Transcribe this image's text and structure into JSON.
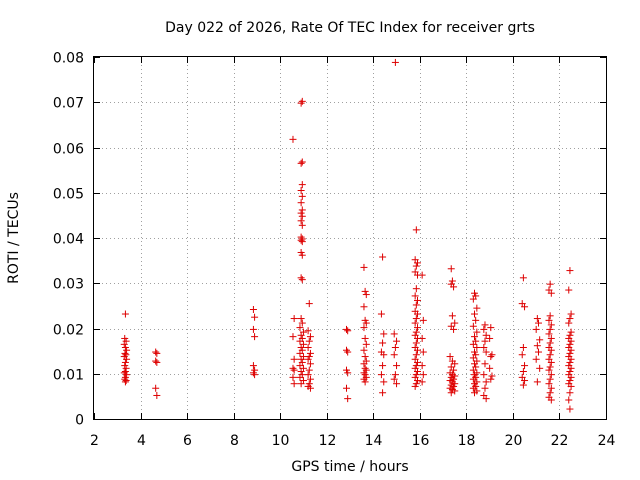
{
  "chart_data": {
    "type": "scatter",
    "title": "Day 022 of 2026, Rate Of TEC Index for receiver grts",
    "xlabel": "GPS time / hours",
    "ylabel": "ROTI / TECUs",
    "xlim": [
      2,
      24
    ],
    "ylim": [
      0,
      0.08
    ],
    "xticks": [
      2,
      4,
      6,
      8,
      10,
      12,
      14,
      16,
      18,
      20,
      22,
      24
    ],
    "xtick_labels": [
      "2",
      "4",
      "6",
      "8",
      "10",
      "12",
      "14",
      "16",
      "18",
      "20",
      "22",
      "24"
    ],
    "yticks": [
      0,
      0.01,
      0.02,
      0.03,
      0.04,
      0.05,
      0.06,
      0.07,
      0.08
    ],
    "ytick_labels": [
      "0",
      "0.01",
      "0.02",
      "0.03",
      "0.04",
      "0.05",
      "0.06",
      "0.07",
      "0.08"
    ],
    "grid": true,
    "marker": "+",
    "color": "#dd0000",
    "points": [
      [
        3.35,
        0.0232
      ],
      [
        3.32,
        0.0178
      ],
      [
        3.38,
        0.0172
      ],
      [
        3.3,
        0.0165
      ],
      [
        3.35,
        0.0158
      ],
      [
        3.4,
        0.0152
      ],
      [
        3.33,
        0.0145
      ],
      [
        3.37,
        0.0142
      ],
      [
        3.3,
        0.0138
      ],
      [
        3.4,
        0.0132
      ],
      [
        3.35,
        0.0125
      ],
      [
        3.32,
        0.0118
      ],
      [
        3.38,
        0.0112
      ],
      [
        3.35,
        0.0105
      ],
      [
        3.3,
        0.0102
      ],
      [
        3.4,
        0.0098
      ],
      [
        3.35,
        0.0092
      ],
      [
        3.32,
        0.0088
      ],
      [
        3.38,
        0.0085
      ],
      [
        3.35,
        0.0082
      ],
      [
        4.65,
        0.0148
      ],
      [
        4.7,
        0.0145
      ],
      [
        4.65,
        0.0128
      ],
      [
        4.7,
        0.0125
      ],
      [
        4.65,
        0.0068
      ],
      [
        4.7,
        0.0052
      ],
      [
        8.85,
        0.0242
      ],
      [
        8.9,
        0.0225
      ],
      [
        8.85,
        0.0198
      ],
      [
        8.9,
        0.0182
      ],
      [
        8.85,
        0.0118
      ],
      [
        8.9,
        0.0108
      ],
      [
        8.85,
        0.0102
      ],
      [
        8.9,
        0.0098
      ],
      [
        10.55,
        0.0618
      ],
      [
        10.6,
        0.0222
      ],
      [
        10.55,
        0.0182
      ],
      [
        10.6,
        0.0132
      ],
      [
        10.55,
        0.0112
      ],
      [
        10.6,
        0.0108
      ],
      [
        10.55,
        0.0092
      ],
      [
        10.6,
        0.0078
      ],
      [
        10.95,
        0.0702
      ],
      [
        10.9,
        0.0698
      ],
      [
        10.95,
        0.0568
      ],
      [
        10.9,
        0.0565
      ],
      [
        10.95,
        0.0518
      ],
      [
        10.9,
        0.0505
      ],
      [
        10.95,
        0.0492
      ],
      [
        10.9,
        0.0478
      ],
      [
        10.95,
        0.0462
      ],
      [
        10.9,
        0.0455
      ],
      [
        10.95,
        0.0448
      ],
      [
        10.9,
        0.0438
      ],
      [
        10.95,
        0.0428
      ],
      [
        10.9,
        0.0402
      ],
      [
        10.95,
        0.0398
      ],
      [
        10.9,
        0.0395
      ],
      [
        10.95,
        0.0392
      ],
      [
        10.9,
        0.0368
      ],
      [
        10.95,
        0.0362
      ],
      [
        10.9,
        0.0312
      ],
      [
        10.95,
        0.0308
      ],
      [
        10.9,
        0.0222
      ],
      [
        10.95,
        0.0212
      ],
      [
        10.85,
        0.0202
      ],
      [
        11.0,
        0.0192
      ],
      [
        10.9,
        0.0185
      ],
      [
        10.95,
        0.0178
      ],
      [
        10.85,
        0.0172
      ],
      [
        11.0,
        0.0165
      ],
      [
        10.9,
        0.0158
      ],
      [
        10.95,
        0.0152
      ],
      [
        10.85,
        0.0145
      ],
      [
        11.0,
        0.0138
      ],
      [
        10.9,
        0.0132
      ],
      [
        10.95,
        0.0125
      ],
      [
        10.85,
        0.0118
      ],
      [
        11.0,
        0.0112
      ],
      [
        10.9,
        0.0105
      ],
      [
        10.95,
        0.0098
      ],
      [
        10.85,
        0.0092
      ],
      [
        11.0,
        0.0085
      ],
      [
        10.9,
        0.0078
      ],
      [
        11.25,
        0.0255
      ],
      [
        11.2,
        0.0195
      ],
      [
        11.3,
        0.0182
      ],
      [
        11.25,
        0.0172
      ],
      [
        11.2,
        0.0158
      ],
      [
        11.3,
        0.0145
      ],
      [
        11.25,
        0.0138
      ],
      [
        11.2,
        0.0132
      ],
      [
        11.3,
        0.0122
      ],
      [
        11.25,
        0.0108
      ],
      [
        11.2,
        0.0098
      ],
      [
        11.3,
        0.0088
      ],
      [
        11.25,
        0.0078
      ],
      [
        11.2,
        0.0072
      ],
      [
        11.3,
        0.0068
      ],
      [
        12.85,
        0.0198
      ],
      [
        12.9,
        0.0195
      ],
      [
        12.85,
        0.0152
      ],
      [
        12.9,
        0.0148
      ],
      [
        12.85,
        0.0108
      ],
      [
        12.9,
        0.0102
      ],
      [
        12.85,
        0.0068
      ],
      [
        12.9,
        0.0045
      ],
      [
        13.6,
        0.0335
      ],
      [
        13.65,
        0.0282
      ],
      [
        13.7,
        0.0275
      ],
      [
        13.6,
        0.0248
      ],
      [
        13.65,
        0.0218
      ],
      [
        13.7,
        0.0212
      ],
      [
        13.6,
        0.0202
      ],
      [
        13.65,
        0.0178
      ],
      [
        13.7,
        0.0165
      ],
      [
        13.6,
        0.0152
      ],
      [
        13.65,
        0.0138
      ],
      [
        13.7,
        0.0128
      ],
      [
        13.6,
        0.0122
      ],
      [
        13.65,
        0.0112
      ],
      [
        13.7,
        0.0108
      ],
      [
        13.6,
        0.0102
      ],
      [
        13.65,
        0.0098
      ],
      [
        13.7,
        0.0092
      ],
      [
        13.6,
        0.0088
      ],
      [
        13.65,
        0.0082
      ],
      [
        14.4,
        0.0358
      ],
      [
        14.35,
        0.0232
      ],
      [
        14.45,
        0.0188
      ],
      [
        14.4,
        0.0168
      ],
      [
        14.35,
        0.0148
      ],
      [
        14.45,
        0.0142
      ],
      [
        14.4,
        0.0118
      ],
      [
        14.35,
        0.0098
      ],
      [
        14.45,
        0.0082
      ],
      [
        14.4,
        0.0058
      ],
      [
        14.95,
        0.0788
      ],
      [
        14.9,
        0.0188
      ],
      [
        15.0,
        0.0172
      ],
      [
        14.95,
        0.0158
      ],
      [
        14.9,
        0.0142
      ],
      [
        15.0,
        0.0118
      ],
      [
        14.95,
        0.0098
      ],
      [
        14.9,
        0.0088
      ],
      [
        15.0,
        0.0078
      ],
      [
        15.85,
        0.0418
      ],
      [
        15.8,
        0.0352
      ],
      [
        15.9,
        0.0345
      ],
      [
        15.85,
        0.0338
      ],
      [
        15.8,
        0.0325
      ],
      [
        15.9,
        0.0318
      ],
      [
        15.85,
        0.0288
      ],
      [
        15.8,
        0.0272
      ],
      [
        15.9,
        0.0262
      ],
      [
        15.85,
        0.0252
      ],
      [
        15.8,
        0.0238
      ],
      [
        15.9,
        0.0232
      ],
      [
        15.85,
        0.0222
      ],
      [
        15.8,
        0.0212
      ],
      [
        15.9,
        0.0202
      ],
      [
        15.85,
        0.0192
      ],
      [
        15.8,
        0.0185
      ],
      [
        15.9,
        0.0178
      ],
      [
        15.85,
        0.0168
      ],
      [
        15.8,
        0.0158
      ],
      [
        15.9,
        0.0152
      ],
      [
        15.85,
        0.0142
      ],
      [
        15.8,
        0.0132
      ],
      [
        15.9,
        0.0125
      ],
      [
        15.85,
        0.0118
      ],
      [
        15.8,
        0.0112
      ],
      [
        15.9,
        0.0105
      ],
      [
        15.85,
        0.0098
      ],
      [
        15.8,
        0.0092
      ],
      [
        15.9,
        0.0085
      ],
      [
        15.85,
        0.0078
      ],
      [
        15.8,
        0.0072
      ],
      [
        16.1,
        0.0318
      ],
      [
        16.15,
        0.0218
      ],
      [
        16.1,
        0.0178
      ],
      [
        16.15,
        0.0148
      ],
      [
        16.1,
        0.0118
      ],
      [
        16.15,
        0.0098
      ],
      [
        16.1,
        0.0082
      ],
      [
        17.35,
        0.0332
      ],
      [
        17.4,
        0.0305
      ],
      [
        17.35,
        0.0298
      ],
      [
        17.45,
        0.0292
      ],
      [
        17.4,
        0.0228
      ],
      [
        17.5,
        0.0212
      ],
      [
        17.35,
        0.0205
      ],
      [
        17.45,
        0.0198
      ],
      [
        17.3,
        0.0138
      ],
      [
        17.4,
        0.0128
      ],
      [
        17.5,
        0.0122
      ],
      [
        17.35,
        0.0115
      ],
      [
        17.45,
        0.0108
      ],
      [
        17.3,
        0.0102
      ],
      [
        17.4,
        0.0098
      ],
      [
        17.5,
        0.0095
      ],
      [
        17.35,
        0.0092
      ],
      [
        17.45,
        0.0088
      ],
      [
        17.3,
        0.0085
      ],
      [
        17.4,
        0.0082
      ],
      [
        17.5,
        0.0078
      ],
      [
        17.35,
        0.0075
      ],
      [
        17.45,
        0.0072
      ],
      [
        17.3,
        0.0068
      ],
      [
        17.4,
        0.0065
      ],
      [
        17.5,
        0.0062
      ],
      [
        17.35,
        0.0058
      ],
      [
        18.35,
        0.0278
      ],
      [
        18.4,
        0.0272
      ],
      [
        18.3,
        0.0265
      ],
      [
        18.45,
        0.0245
      ],
      [
        18.35,
        0.0232
      ],
      [
        18.4,
        0.0218
      ],
      [
        18.3,
        0.0205
      ],
      [
        18.45,
        0.0192
      ],
      [
        18.35,
        0.0182
      ],
      [
        18.4,
        0.0172
      ],
      [
        18.3,
        0.0165
      ],
      [
        18.45,
        0.0158
      ],
      [
        18.35,
        0.0148
      ],
      [
        18.4,
        0.0142
      ],
      [
        18.3,
        0.0135
      ],
      [
        18.45,
        0.0128
      ],
      [
        18.35,
        0.0122
      ],
      [
        18.4,
        0.0115
      ],
      [
        18.3,
        0.0108
      ],
      [
        18.45,
        0.0102
      ],
      [
        18.35,
        0.0098
      ],
      [
        18.4,
        0.0092
      ],
      [
        18.3,
        0.0088
      ],
      [
        18.45,
        0.0082
      ],
      [
        18.35,
        0.0078
      ],
      [
        18.4,
        0.0072
      ],
      [
        18.3,
        0.0068
      ],
      [
        18.45,
        0.0062
      ],
      [
        18.35,
        0.0058
      ],
      [
        18.8,
        0.0208
      ],
      [
        18.75,
        0.0198
      ],
      [
        18.85,
        0.0185
      ],
      [
        18.8,
        0.0172
      ],
      [
        18.75,
        0.0158
      ],
      [
        18.85,
        0.0148
      ],
      [
        18.8,
        0.0122
      ],
      [
        18.75,
        0.0098
      ],
      [
        18.85,
        0.0082
      ],
      [
        18.8,
        0.0068
      ],
      [
        18.75,
        0.0052
      ],
      [
        18.85,
        0.0045
      ],
      [
        19.05,
        0.0202
      ],
      [
        19.0,
        0.0178
      ],
      [
        19.1,
        0.0142
      ],
      [
        19.05,
        0.0138
      ],
      [
        19.0,
        0.0112
      ],
      [
        19.1,
        0.0095
      ],
      [
        19.05,
        0.0088
      ],
      [
        20.45,
        0.0312
      ],
      [
        20.4,
        0.0255
      ],
      [
        20.5,
        0.0248
      ],
      [
        20.45,
        0.0158
      ],
      [
        20.4,
        0.0142
      ],
      [
        20.5,
        0.0118
      ],
      [
        20.45,
        0.0105
      ],
      [
        20.4,
        0.0092
      ],
      [
        20.5,
        0.0085
      ],
      [
        20.45,
        0.0075
      ],
      [
        21.05,
        0.0222
      ],
      [
        21.1,
        0.0212
      ],
      [
        21.0,
        0.0198
      ],
      [
        21.15,
        0.0175
      ],
      [
        21.05,
        0.0162
      ],
      [
        21.1,
        0.0148
      ],
      [
        21.0,
        0.0132
      ],
      [
        21.15,
        0.0112
      ],
      [
        21.05,
        0.0082
      ],
      [
        21.6,
        0.0298
      ],
      [
        21.55,
        0.0285
      ],
      [
        21.65,
        0.0278
      ],
      [
        21.6,
        0.0228
      ],
      [
        21.55,
        0.0218
      ],
      [
        21.65,
        0.0208
      ],
      [
        21.6,
        0.0198
      ],
      [
        21.55,
        0.0188
      ],
      [
        21.65,
        0.0178
      ],
      [
        21.6,
        0.0168
      ],
      [
        21.55,
        0.0158
      ],
      [
        21.65,
        0.0152
      ],
      [
        21.6,
        0.0142
      ],
      [
        21.55,
        0.0132
      ],
      [
        21.65,
        0.0125
      ],
      [
        21.6,
        0.0115
      ],
      [
        21.55,
        0.0108
      ],
      [
        21.65,
        0.0098
      ],
      [
        21.6,
        0.0088
      ],
      [
        21.55,
        0.0078
      ],
      [
        21.65,
        0.0068
      ],
      [
        21.6,
        0.0058
      ],
      [
        21.55,
        0.0048
      ],
      [
        21.65,
        0.0042
      ],
      [
        22.45,
        0.0328
      ],
      [
        22.4,
        0.0285
      ],
      [
        22.5,
        0.0232
      ],
      [
        22.45,
        0.0222
      ],
      [
        22.4,
        0.0212
      ],
      [
        22.5,
        0.0192
      ],
      [
        22.45,
        0.0185
      ],
      [
        22.4,
        0.0178
      ],
      [
        22.5,
        0.0172
      ],
      [
        22.45,
        0.0165
      ],
      [
        22.4,
        0.0158
      ],
      [
        22.5,
        0.0152
      ],
      [
        22.45,
        0.0145
      ],
      [
        22.4,
        0.0138
      ],
      [
        22.5,
        0.0132
      ],
      [
        22.45,
        0.0125
      ],
      [
        22.4,
        0.0118
      ],
      [
        22.5,
        0.0112
      ],
      [
        22.45,
        0.0105
      ],
      [
        22.4,
        0.0098
      ],
      [
        22.5,
        0.0092
      ],
      [
        22.45,
        0.0085
      ],
      [
        22.4,
        0.0078
      ],
      [
        22.5,
        0.0072
      ],
      [
        22.45,
        0.0058
      ],
      [
        22.4,
        0.0042
      ],
      [
        22.45,
        0.0022
      ]
    ]
  }
}
